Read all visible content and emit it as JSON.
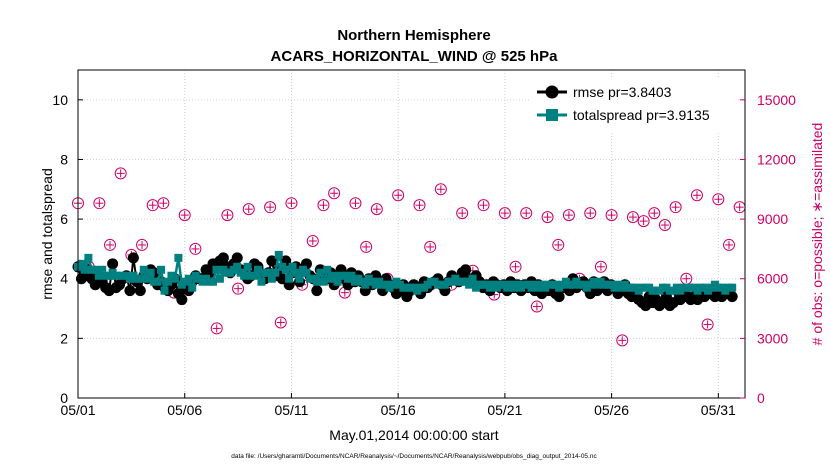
{
  "chart_data": {
    "type": "line",
    "title": "Northern Hemisphere",
    "subtitle": "ACARS_HORIZONTAL_WIND @ 525 hPa",
    "xlabel": "May.01,2014 00:00:00 start",
    "ylabel": "rmse and totalspread",
    "ylabel_right": "# of obs: o=possible; ∗=assimilated",
    "footnote": "data file: /Users/gharamti/Documents/NCAR/Reanalysis/~/Documents/NCAR/Reanalysis/webpub/obs_diag_output_2014-05.nc",
    "x_ticks": [
      "05/01",
      "05/06",
      "05/11",
      "05/16",
      "05/21",
      "05/26",
      "05/31"
    ],
    "y_ticks": [
      "0",
      "2",
      "4",
      "6",
      "8",
      "10"
    ],
    "y_ticks_right": [
      "0",
      "3000",
      "6000",
      "9000",
      "12000",
      "15000"
    ],
    "xlim": [
      0,
      31.25
    ],
    "ylim": [
      0,
      11
    ],
    "ylim_right": [
      0,
      16500
    ],
    "legend_position": "top-right",
    "grid": true,
    "x_unit": "days since 05/01 00:00 (6-hourly)",
    "series": [
      {
        "name": "rmse pr=3.8403",
        "color": "#000000",
        "marker": "circle",
        "values": [
          4.4,
          4.0,
          4.1,
          4.3,
          4.0,
          3.8,
          4.2,
          3.9,
          3.7,
          3.6,
          4.5,
          3.7,
          3.8,
          4.0,
          4.1,
          3.6,
          4.7,
          3.9,
          3.6,
          4.1,
          4.0,
          4.3,
          4.2,
          3.8,
          3.9,
          3.7,
          3.6,
          3.8,
          4.0,
          3.5,
          3.3,
          3.7,
          3.6,
          3.9,
          4.1,
          4.0,
          4.0,
          4.3,
          4.2,
          4.5,
          4.4,
          4.6,
          4.7,
          4.4,
          4.2,
          4.5,
          4.7,
          4.3,
          4.2,
          4.0,
          4.1,
          4.5,
          4.4,
          4.1,
          4.0,
          4.2,
          4.6,
          4.1,
          4.3,
          4.0,
          4.6,
          3.8,
          4.2,
          4.4,
          3.9,
          4.3,
          4.5,
          4.1,
          4.0,
          3.6,
          4.3,
          4.1,
          4.0,
          4.2,
          3.8,
          4.1,
          4.3,
          4.0,
          3.8,
          4.2,
          3.9,
          4.1,
          3.9,
          3.6,
          4.0,
          3.8,
          4.1,
          3.9,
          3.6,
          4.0,
          3.8,
          3.7,
          3.5,
          3.6,
          3.8,
          3.4,
          3.6,
          3.8,
          3.7,
          3.5,
          3.9,
          3.7,
          3.8,
          3.9,
          4.0,
          3.8,
          3.6,
          3.9,
          4.1,
          4.0,
          3.9,
          4.2,
          4.3,
          4.0,
          3.9,
          4.1,
          3.9,
          3.7,
          3.8,
          3.6,
          3.9,
          3.8,
          3.7,
          3.8,
          3.6,
          3.9,
          3.7,
          3.8,
          3.6,
          3.8,
          3.7,
          3.9,
          3.6,
          3.8,
          3.5,
          3.7,
          3.6,
          3.8,
          3.5,
          3.4,
          3.7,
          3.8,
          3.6,
          4.0,
          3.7,
          3.8,
          3.9,
          3.7,
          3.5,
          3.9,
          3.6,
          3.7,
          3.9,
          3.6,
          3.8,
          3.7,
          3.5,
          3.6,
          3.8,
          3.5,
          3.4,
          3.6,
          3.3,
          3.2,
          3.1,
          3.4,
          3.2,
          3.3,
          3.1,
          3.2,
          3.4,
          3.1,
          3.2,
          3.6,
          3.3,
          3.4,
          3.4,
          3.3,
          3.4,
          3.3,
          3.6,
          3.4,
          3.5,
          3.5,
          3.4,
          3.5,
          3.4,
          3.6,
          3.5,
          3.4
        ]
      },
      {
        "name": "totalspread pr=3.9135",
        "color": "#008080",
        "marker": "square",
        "values": [
          4.4,
          4.5,
          4.3,
          4.7,
          4.3,
          4.3,
          4.1,
          4.3,
          4.1,
          4.1,
          4.2,
          4.1,
          4.1,
          4.1,
          4.1,
          4.0,
          4.1,
          4.0,
          4.0,
          4.3,
          4.0,
          4.2,
          3.9,
          3.9,
          4.3,
          3.6,
          3.9,
          4.1,
          4.0,
          4.7,
          3.8,
          3.9,
          4.0,
          3.7,
          4.1,
          4.0,
          3.9,
          4.0,
          3.9,
          3.9,
          4.3,
          4.0,
          4.3,
          4.2,
          4.2,
          4.3,
          4.4,
          4.2,
          4.1,
          4.4,
          4.1,
          4.1,
          4.3,
          3.9,
          4.2,
          4.2,
          4.0,
          4.2,
          4.8,
          4.4,
          4.3,
          4.0,
          4.4,
          4.2,
          4.0,
          4.3,
          4.2,
          4.0,
          4.0,
          3.9,
          4.2,
          3.9,
          4.3,
          4.0,
          4.1,
          3.9,
          4.1,
          4.1,
          4.0,
          4.1,
          3.9,
          4.0,
          3.9,
          3.8,
          4.0,
          3.9,
          3.8,
          3.9,
          3.8,
          3.8,
          3.7,
          3.8,
          3.9,
          3.8,
          3.7,
          3.7,
          3.7,
          3.7,
          3.6,
          3.7,
          3.7,
          3.8,
          3.9,
          3.9,
          3.8,
          3.8,
          3.8,
          3.9,
          3.9,
          4.0,
          3.9,
          3.9,
          3.9,
          3.8,
          4.0,
          3.7,
          3.8,
          3.8,
          3.8,
          3.7,
          3.8,
          3.7,
          3.8,
          3.8,
          3.7,
          3.8,
          3.7,
          3.8,
          3.7,
          3.8,
          3.8,
          3.7,
          3.8,
          3.7,
          3.8,
          3.7,
          3.8,
          3.8,
          3.8,
          3.7,
          3.8,
          3.9,
          3.8,
          3.8,
          3.9,
          3.8,
          3.8,
          3.7,
          3.8,
          3.9,
          3.8,
          3.9,
          3.8,
          3.8,
          3.8,
          3.7,
          3.8,
          3.7,
          3.8,
          3.7,
          3.7,
          3.7,
          3.6,
          3.7,
          3.7,
          3.7,
          3.6,
          3.6,
          3.6,
          3.7,
          3.7,
          3.6,
          3.6,
          3.7,
          3.6,
          3.7,
          3.7,
          3.7,
          3.7,
          3.6,
          3.7,
          3.7,
          3.6,
          3.7,
          3.8,
          3.7,
          3.7,
          3.6,
          3.7,
          3.7
        ]
      },
      {
        "name": "possible",
        "color": "#cc0066",
        "marker": "circled-plus",
        "axis": "right",
        "points": [
          [
            0,
            9800
          ],
          [
            0.5,
            6600
          ],
          [
            1,
            9800
          ],
          [
            1.5,
            7700
          ],
          [
            2,
            11300
          ],
          [
            2.5,
            7200
          ],
          [
            3,
            7700
          ],
          [
            3.5,
            9700
          ],
          [
            4,
            9800
          ],
          [
            4.5,
            5300
          ],
          [
            5,
            9200
          ],
          [
            5.5,
            7500
          ],
          [
            6,
            6100
          ],
          [
            6.5,
            3500
          ],
          [
            7,
            9200
          ],
          [
            7.5,
            5500
          ],
          [
            8,
            9500
          ],
          [
            8.5,
            6300
          ],
          [
            9,
            9600
          ],
          [
            9.5,
            3800
          ],
          [
            10,
            9800
          ],
          [
            10.5,
            5700
          ],
          [
            11,
            7900
          ],
          [
            11.5,
            9700
          ],
          [
            12,
            10300
          ],
          [
            12.5,
            5300
          ],
          [
            13,
            9800
          ],
          [
            13.5,
            7600
          ],
          [
            14,
            9500
          ],
          [
            14.5,
            6000
          ],
          [
            15,
            10200
          ],
          [
            15.5,
            5500
          ],
          [
            16,
            9700
          ],
          [
            16.5,
            7600
          ],
          [
            17,
            10500
          ],
          [
            17.5,
            5700
          ],
          [
            18,
            9300
          ],
          [
            18.5,
            6400
          ],
          [
            19,
            9700
          ],
          [
            19.5,
            5200
          ],
          [
            20,
            9300
          ],
          [
            20.5,
            6600
          ],
          [
            21,
            9300
          ],
          [
            21.5,
            4600
          ],
          [
            22,
            9100
          ],
          [
            22.5,
            7700
          ],
          [
            23,
            9200
          ],
          [
            23.5,
            6000
          ],
          [
            24,
            9300
          ],
          [
            24.5,
            6600
          ],
          [
            25,
            9200
          ],
          [
            25.5,
            2900
          ],
          [
            26,
            9100
          ],
          [
            26.5,
            8900
          ],
          [
            27,
            9300
          ],
          [
            27.5,
            8700
          ],
          [
            28,
            9600
          ],
          [
            28.5,
            6000
          ],
          [
            29,
            10200
          ],
          [
            29.5,
            3700
          ],
          [
            30,
            10000
          ],
          [
            30.5,
            7700
          ],
          [
            31,
            9600
          ]
        ],
        "note": "visible as circled markers; values read approximately from right axis"
      }
    ]
  }
}
